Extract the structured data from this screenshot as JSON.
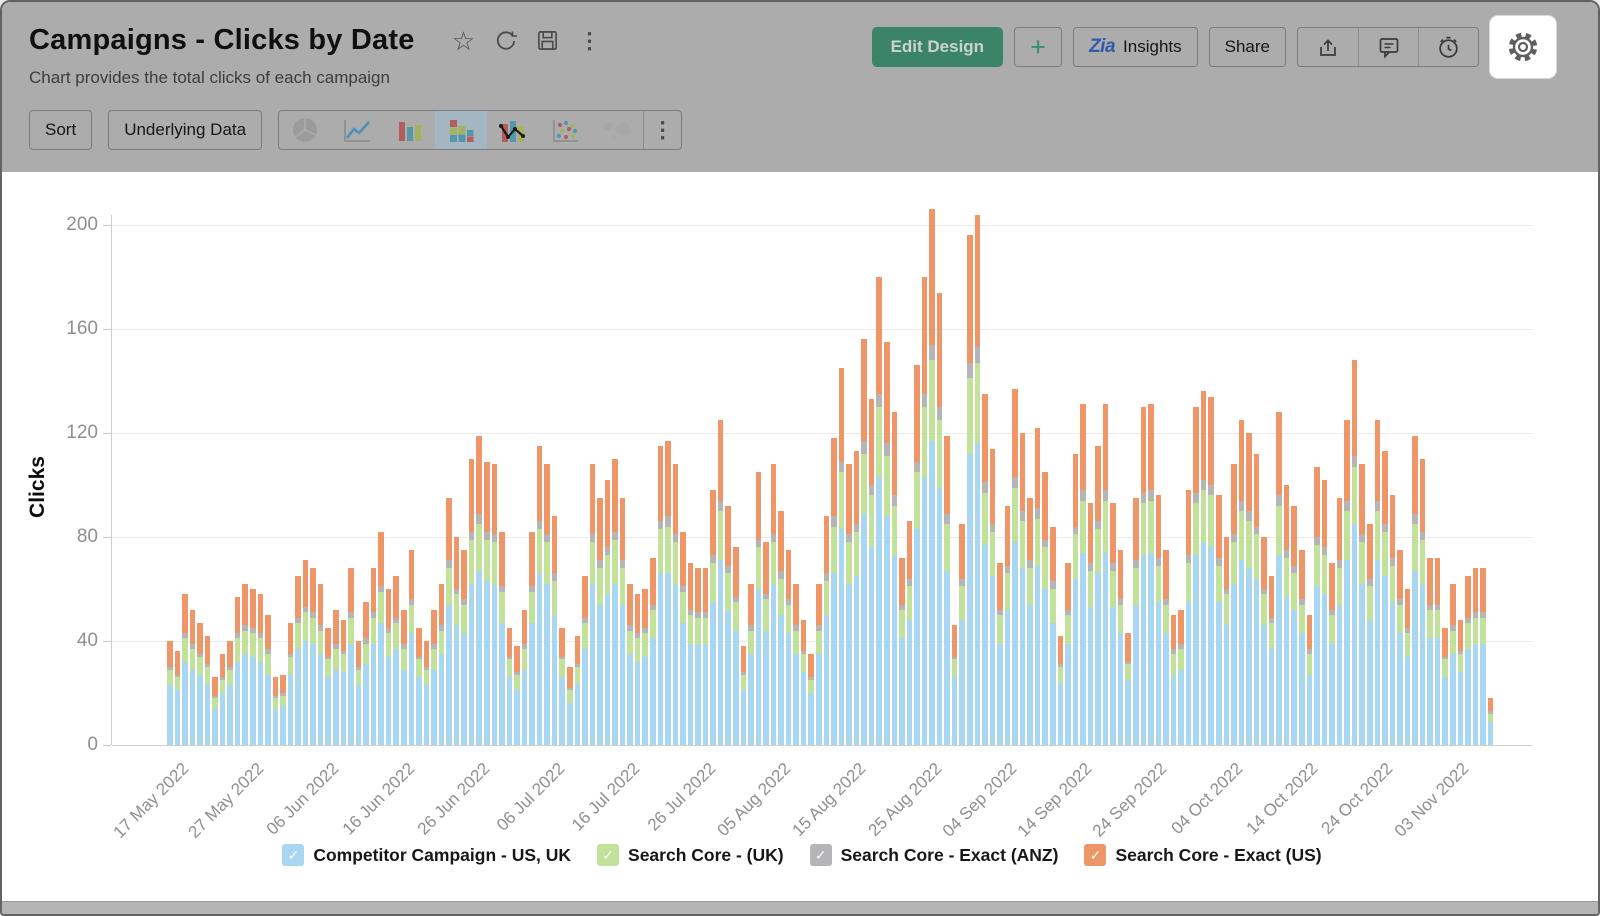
{
  "header": {
    "title": "Campaigns - Clicks by Date",
    "subtitle": "Chart provides the total clicks of each campaign",
    "title_icons": [
      "favorite-star",
      "refresh",
      "save",
      "more-options"
    ],
    "edit_design_label": "Edit Design",
    "plus_label": "+",
    "zia_label": "Zia",
    "insights_label": "Insights",
    "share_label": "Share",
    "right_icons": [
      "export",
      "comment",
      "alert",
      "settings-gear"
    ],
    "settings_highlighted": true
  },
  "toolbar": {
    "sort_label": "Sort",
    "underlying_data_label": "Underlying Data",
    "chart_type_icons": [
      "pie-chart",
      "line-chart",
      "bar-chart",
      "stacked-bar-chart",
      "combo-chart",
      "scatter-chart",
      "map-chart",
      "more"
    ],
    "selected_chart_type": "stacked-bar-chart",
    "more_glyph": "⋮"
  },
  "glyphs": {
    "star": "☆",
    "dots": "⋮",
    "check": "✓"
  },
  "colors": {
    "header_bg": "#acacac",
    "primary_green": "#3c8468",
    "blue": "#a9d6f0",
    "green": "#c2e29c",
    "gray": "#b5b5b8",
    "orange": "#ef9668",
    "gridline": "#eaeaea"
  },
  "chart_data": {
    "type": "bar",
    "subtype": "stacked",
    "ylabel": "Clicks",
    "ylim": [
      0,
      200
    ],
    "y_ticks": [
      0,
      40,
      80,
      120,
      160,
      200
    ],
    "grid": "horizontal",
    "legend_position": "bottom",
    "num_bars": 176,
    "x_unit": "day",
    "x_tick_every": 10,
    "x_ticks": [
      "17 May 2022",
      "27 May 2022",
      "06 Jun 2022",
      "16 Jun 2022",
      "26 Jun 2022",
      "06 Jul 2022",
      "16 Jul 2022",
      "26 Jul 2022",
      "05 Aug 2022",
      "15 Aug 2022",
      "25 Aug 2022",
      "04 Sep 2022",
      "14 Sep 2022",
      "24 Sep 2022",
      "04 Oct 2022",
      "14 Oct 2022",
      "24 Oct 2022",
      "03 Nov 2022"
    ],
    "series": [
      {
        "name": "Competitor Campaign - US, UK",
        "color": "#a9d6f0",
        "values": [
          23,
          21,
          32,
          29,
          27,
          24,
          14,
          20,
          23,
          32,
          35,
          34,
          32,
          27,
          14,
          15,
          27,
          37,
          40,
          39,
          35,
          26,
          29,
          28,
          39,
          23,
          31,
          39,
          47,
          34,
          37,
          29,
          43,
          26,
          23,
          29,
          35,
          54,
          46,
          43,
          62,
          67,
          63,
          62,
          47,
          26,
          21,
          29,
          47,
          66,
          62,
          50,
          26,
          16,
          24,
          37,
          62,
          54,
          58,
          62,
          54,
          35,
          32,
          34,
          41,
          66,
          66,
          62,
          47,
          39,
          39,
          39,
          55,
          71,
          52,
          44,
          21,
          35,
          60,
          44,
          62,
          50,
          43,
          35,
          28,
          20,
          35,
          50,
          66,
          83,
          62,
          65,
          89,
          76,
          103,
          88,
          73,
          41,
          48,
          83,
          103,
          117,
          99,
          67,
          26,
          48,
          112,
          116,
          77,
          65,
          39,
          52,
          78,
          68,
          54,
          69,
          60,
          47,
          24,
          39,
          64,
          74,
          53,
          66,
          74,
          53,
          43,
          25,
          54,
          73,
          74,
          55,
          43,
          27,
          29,
          55,
          73,
          78,
          76,
          55,
          46,
          62,
          71,
          68,
          64,
          46,
          37,
          73,
          57,
          52,
          43,
          27,
          61,
          58,
          39,
          54,
          71,
          85,
          62,
          48,
          71,
          65,
          55,
          43,
          34,
          67,
          62,
          41,
          41,
          26,
          35,
          28,
          37,
          39,
          39,
          9
        ]
      },
      {
        "name": "Search Core - (UK)",
        "color": "#c2e29c",
        "values": [
          6,
          5,
          9,
          8,
          7,
          6,
          4,
          5,
          6,
          9,
          9,
          9,
          9,
          8,
          4,
          4,
          7,
          10,
          11,
          10,
          9,
          7,
          8,
          7,
          10,
          6,
          8,
          10,
          12,
          9,
          10,
          8,
          11,
          7,
          6,
          8,
          9,
          14,
          12,
          11,
          17,
          18,
          16,
          16,
          12,
          7,
          6,
          8,
          12,
          17,
          16,
          13,
          7,
          5,
          6,
          10,
          16,
          14,
          15,
          17,
          14,
          9,
          9,
          9,
          11,
          17,
          18,
          16,
          12,
          11,
          10,
          10,
          15,
          19,
          14,
          11,
          6,
          9,
          16,
          12,
          16,
          14,
          11,
          9,
          7,
          5,
          9,
          13,
          18,
          22,
          16,
          17,
          23,
          20,
          27,
          23,
          19,
          11,
          13,
          22,
          27,
          31,
          26,
          18,
          7,
          13,
          29,
          31,
          20,
          17,
          11,
          14,
          21,
          18,
          14,
          18,
          16,
          13,
          6,
          11,
          17,
          20,
          14,
          17,
          20,
          14,
          11,
          6,
          14,
          20,
          20,
          14,
          11,
          8,
          8,
          15,
          20,
          20,
          20,
          14,
          12,
          16,
          19,
          18,
          17,
          12,
          10,
          19,
          15,
          14,
          11,
          8,
          16,
          15,
          11,
          14,
          19,
          22,
          16,
          13,
          19,
          17,
          14,
          11,
          9,
          18,
          17,
          11,
          11,
          7,
          9,
          7,
          10,
          10,
          10,
          3
        ]
      },
      {
        "name": "Search Core - Exact (ANZ)",
        "color": "#b5b5b8",
        "values": [
          1,
          1,
          2,
          2,
          1,
          1,
          1,
          1,
          1,
          2,
          2,
          2,
          2,
          2,
          1,
          1,
          1,
          2,
          2,
          2,
          2,
          1,
          2,
          1,
          2,
          1,
          2,
          2,
          2,
          2,
          2,
          2,
          2,
          1,
          1,
          2,
          2,
          3,
          2,
          2,
          3,
          4,
          3,
          3,
          2,
          1,
          1,
          2,
          2,
          3,
          3,
          3,
          1,
          1,
          1,
          2,
          3,
          3,
          3,
          3,
          3,
          2,
          2,
          2,
          2,
          3,
          4,
          3,
          2,
          2,
          2,
          2,
          3,
          4,
          3,
          2,
          1,
          2,
          3,
          2,
          3,
          3,
          2,
          2,
          1,
          1,
          2,
          3,
          4,
          4,
          3,
          3,
          5,
          4,
          5,
          5,
          4,
          2,
          3,
          4,
          5,
          6,
          5,
          4,
          1,
          3,
          6,
          6,
          4,
          3,
          2,
          3,
          4,
          4,
          3,
          4,
          3,
          3,
          1,
          2,
          3,
          4,
          3,
          3,
          4,
          3,
          2,
          1,
          3,
          4,
          4,
          3,
          2,
          2,
          2,
          3,
          4,
          4,
          4,
          3,
          2,
          3,
          4,
          4,
          3,
          2,
          2,
          4,
          3,
          3,
          2,
          2,
          3,
          3,
          2,
          3,
          4,
          4,
          3,
          3,
          4,
          3,
          3,
          2,
          2,
          4,
          3,
          2,
          2,
          1,
          2,
          1,
          2,
          2,
          2,
          1
        ]
      },
      {
        "name": "Search Core - Exact (US)",
        "color": "#ef9668",
        "values": [
          10,
          9,
          15,
          13,
          12,
          11,
          7,
          9,
          10,
          14,
          16,
          15,
          15,
          13,
          7,
          7,
          12,
          16,
          18,
          17,
          16,
          11,
          13,
          12,
          17,
          10,
          14,
          17,
          21,
          15,
          16,
          13,
          19,
          11,
          10,
          13,
          16,
          24,
          20,
          19,
          28,
          30,
          27,
          27,
          21,
          11,
          10,
          13,
          21,
          29,
          27,
          22,
          11,
          8,
          11,
          16,
          27,
          24,
          26,
          28,
          24,
          16,
          15,
          15,
          18,
          29,
          29,
          27,
          21,
          18,
          17,
          17,
          25,
          31,
          23,
          19,
          10,
          16,
          26,
          20,
          27,
          23,
          19,
          16,
          12,
          9,
          16,
          22,
          30,
          36,
          27,
          28,
          39,
          33,
          45,
          39,
          32,
          18,
          22,
          37,
          45,
          52,
          44,
          30,
          12,
          21,
          49,
          51,
          34,
          29,
          18,
          23,
          34,
          30,
          24,
          31,
          26,
          21,
          11,
          18,
          28,
          33,
          23,
          29,
          33,
          23,
          19,
          11,
          24,
          33,
          33,
          24,
          19,
          13,
          13,
          25,
          33,
          34,
          34,
          24,
          20,
          27,
          31,
          30,
          28,
          20,
          16,
          32,
          25,
          23,
          19,
          13,
          27,
          26,
          18,
          24,
          31,
          37,
          27,
          21,
          31,
          28,
          24,
          19,
          15,
          30,
          28,
          18,
          18,
          11,
          16,
          12,
          16,
          17,
          17,
          5
        ]
      }
    ]
  }
}
